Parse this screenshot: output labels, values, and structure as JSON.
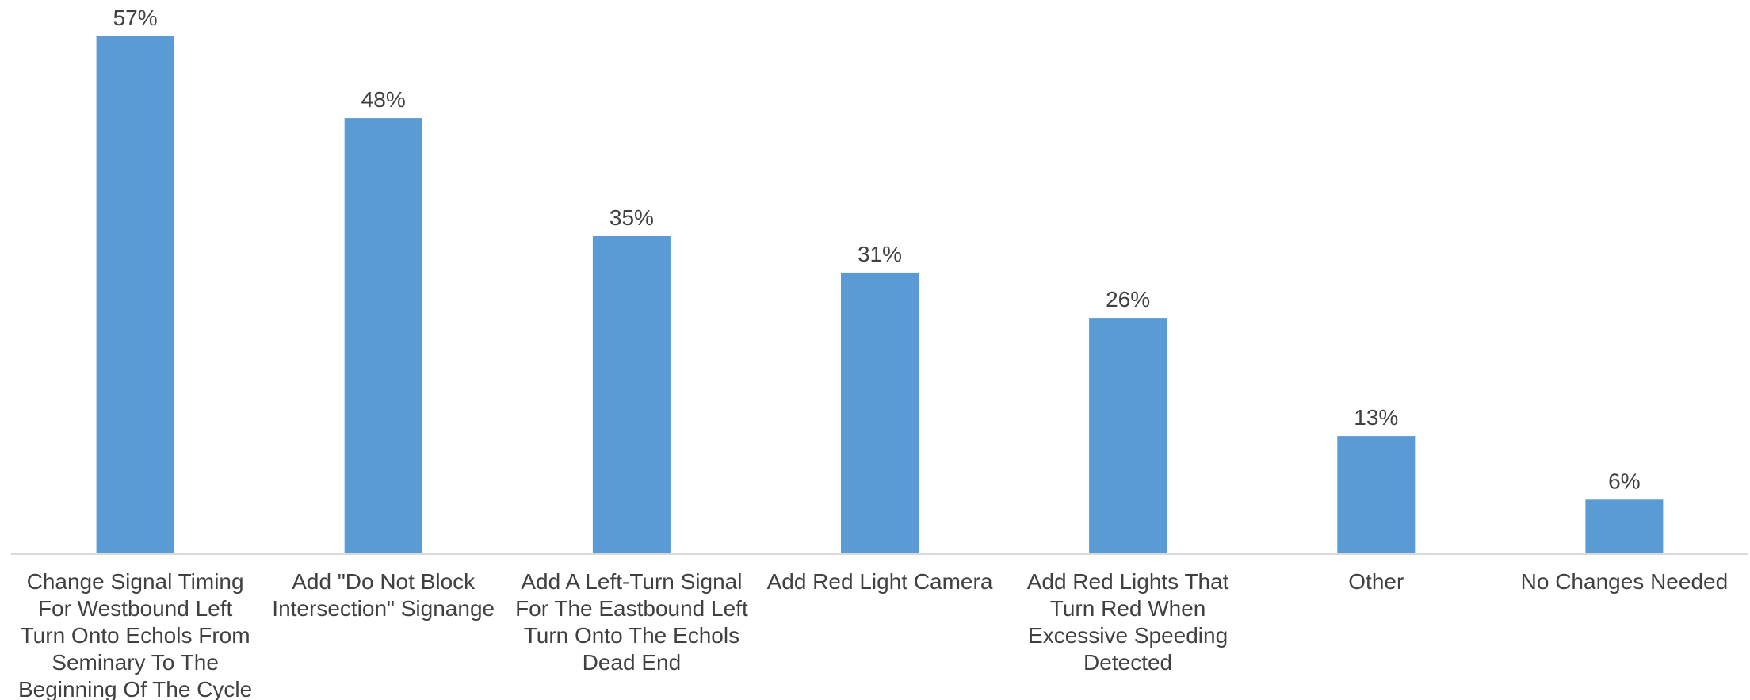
{
  "chart_data": {
    "type": "bar",
    "categories": [
      "Change Signal Timing For Westbound Left Turn Onto Echols From Seminary To The Beginning Of The Cycle",
      "Add \"Do Not Block Intersection\" Signange",
      "Add A Left-Turn Signal For The Eastbound Left Turn Onto The Echols Dead End",
      "Add Red Light Camera",
      "Add Red Lights That Turn Red When Excessive Speeding Detected",
      "Other",
      "No Changes Needed"
    ],
    "category_label_lines": [
      [
        "Change Signal Timing",
        "For Westbound Left",
        "Turn Onto Echols From",
        "Seminary To The",
        "Beginning Of The Cycle"
      ],
      [
        "Add \"Do Not Block",
        "Intersection\" Signange"
      ],
      [
        "Add A Left-Turn Signal",
        "For The Eastbound Left",
        "Turn Onto The Echols",
        "Dead End"
      ],
      [
        "Add Red Light Camera"
      ],
      [
        "Add Red Lights That",
        "Turn Red When",
        "Excessive Speeding",
        "Detected"
      ],
      [
        "Other"
      ],
      [
        "No Changes Needed"
      ]
    ],
    "values": [
      57,
      48,
      35,
      31,
      26,
      13,
      6
    ],
    "value_labels": [
      "57%",
      "48%",
      "35%",
      "31%",
      "26%",
      "13%",
      "6%"
    ],
    "ylim": [
      0,
      57
    ],
    "gridlines": false,
    "legend": "none",
    "colors": {
      "bar": "#5B9BD5",
      "axis": "#D9D9D9",
      "text": "#404040"
    }
  }
}
